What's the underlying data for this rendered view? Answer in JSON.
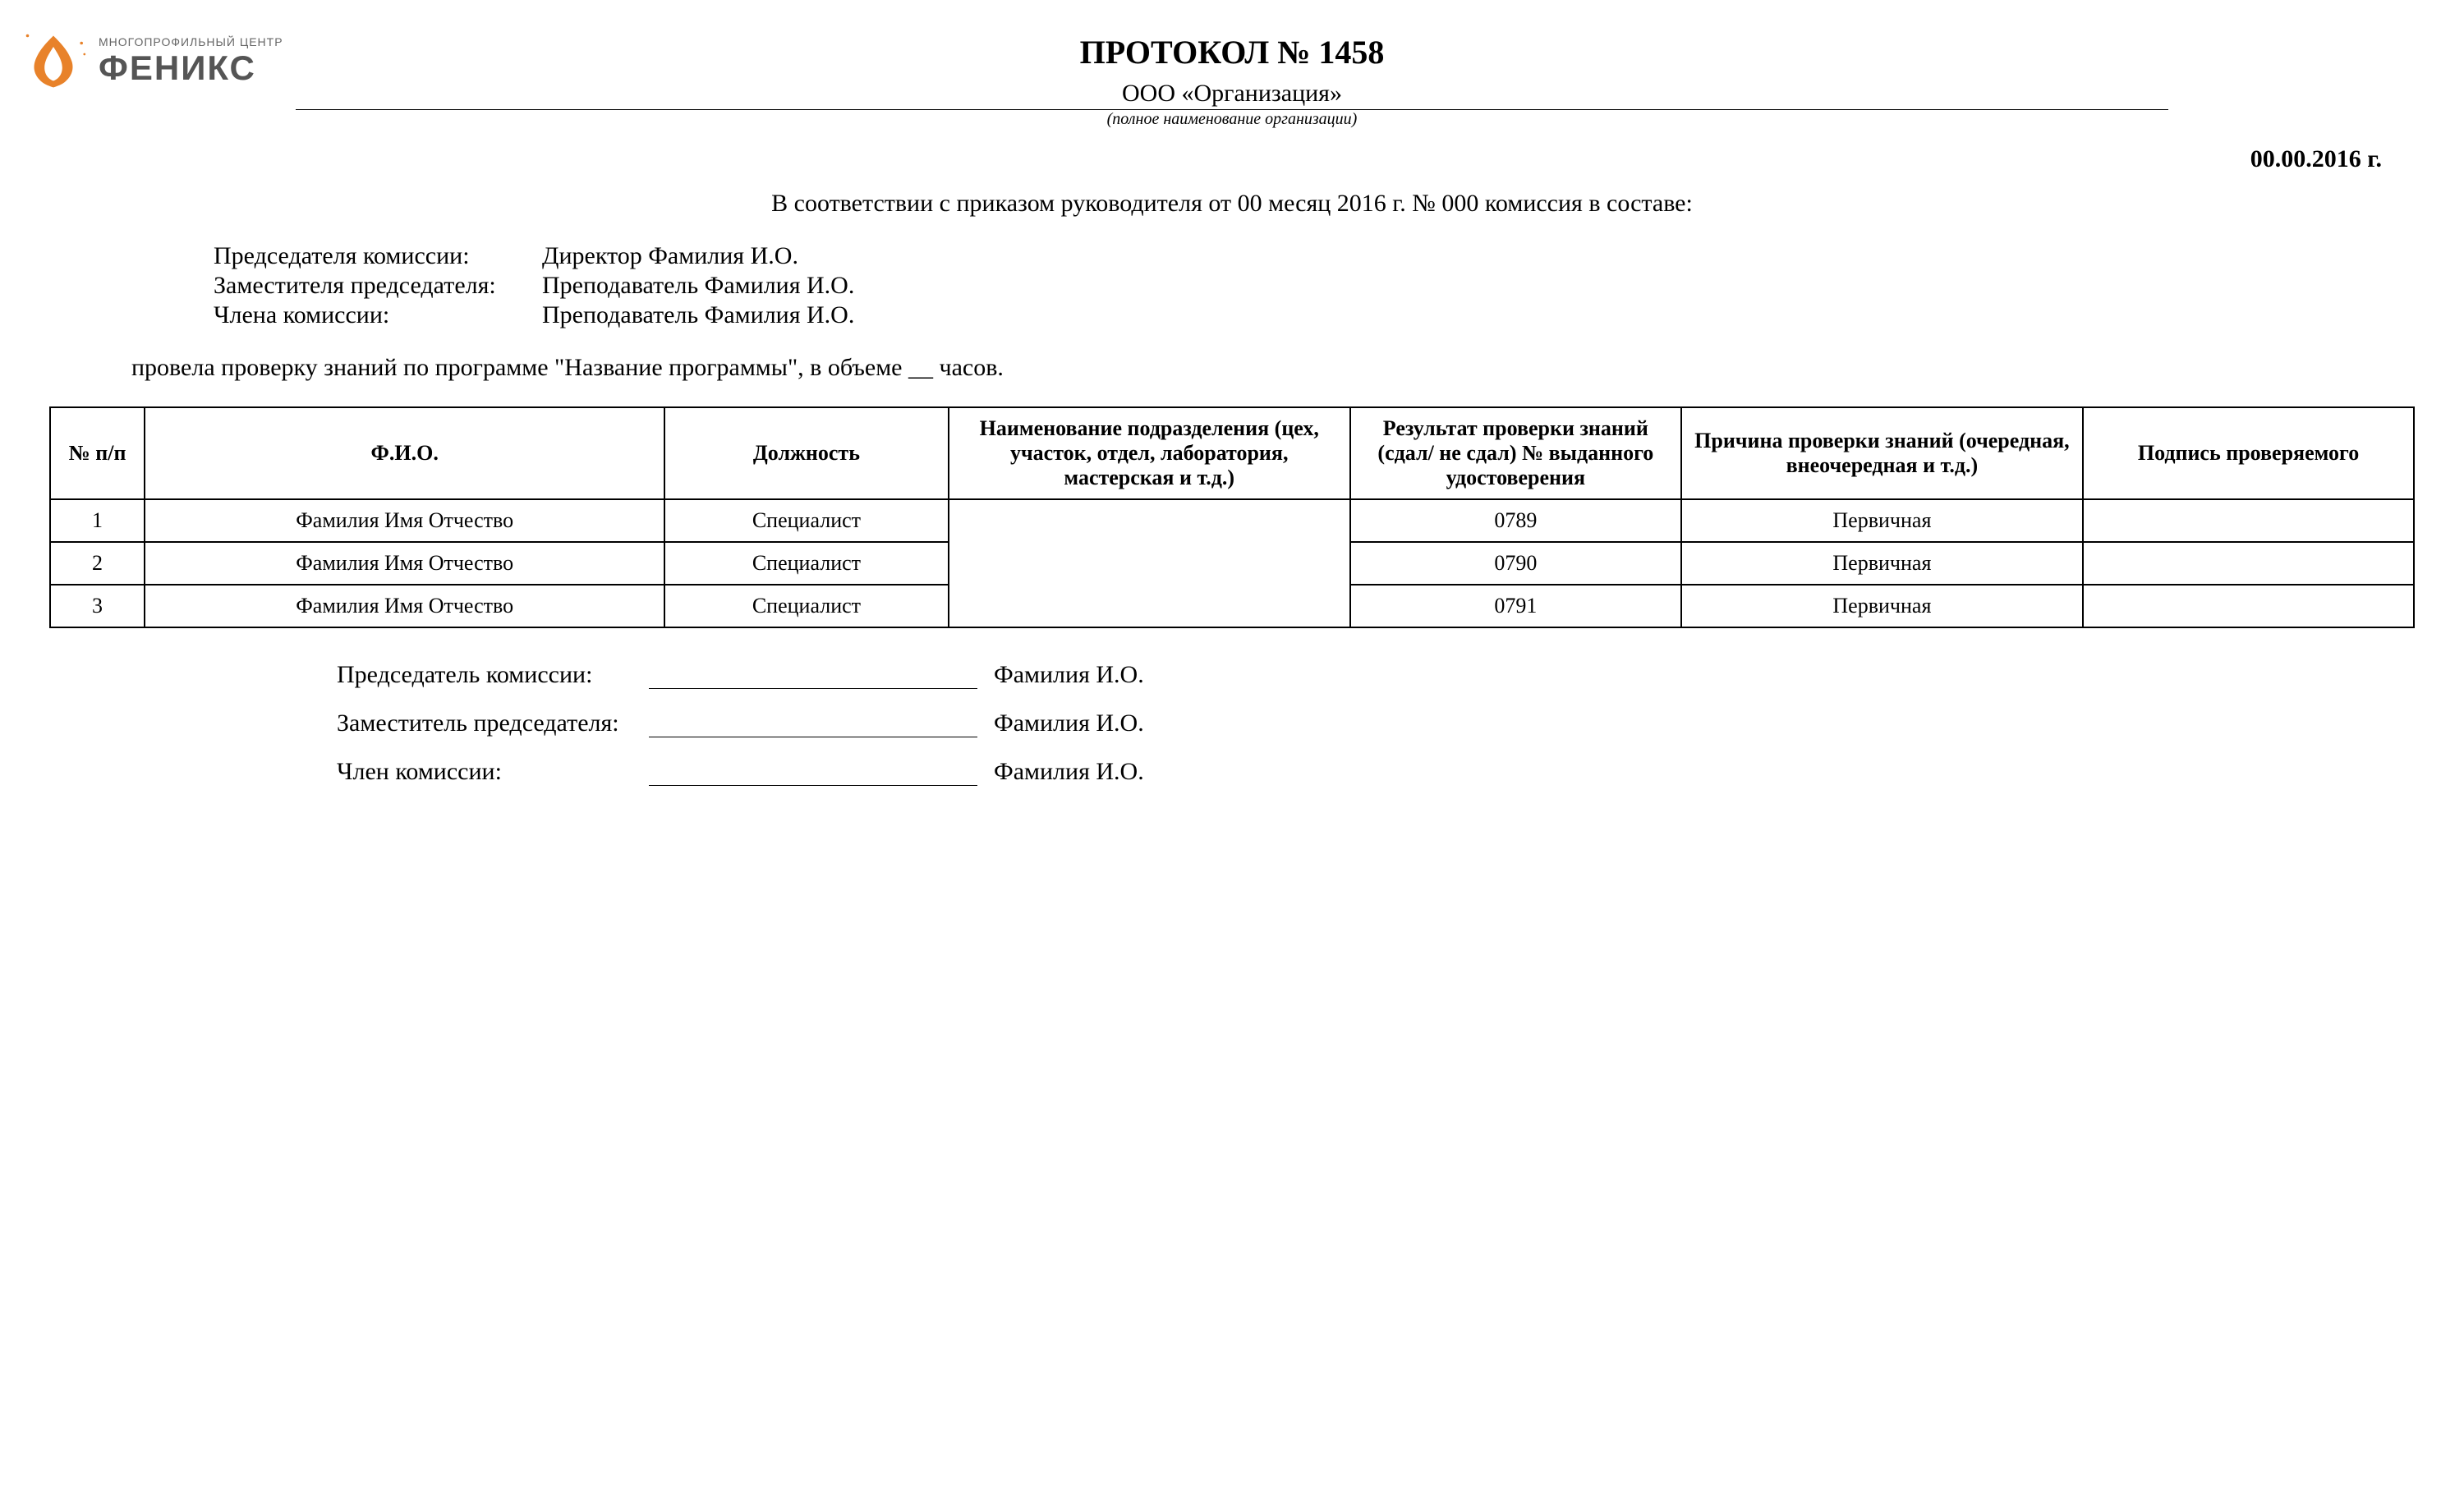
{
  "logo": {
    "subtitle": "МНОГОПРОФИЛЬНЫЙ ЦЕНТР",
    "title": "ФЕНИКС",
    "icon_color": "#e8822a"
  },
  "header": {
    "protocol_title": "ПРОТОКОЛ № 1458",
    "organization": "ООО «Организация»",
    "org_caption": "(полное наименование организации)"
  },
  "date": "00.00.2016 г.",
  "intro": "В соответствии с приказом руководителя от 00 месяц 2016 г. № 000  комиссия в составе:",
  "commission": {
    "chairman_label": "Председателя комиссии:",
    "chairman_value": "Директор  Фамилия И.О.",
    "deputy_label": "Заместителя председателя:",
    "deputy_value": "Преподаватель Фамилия И.О.",
    "member_label": "Члена комиссии:",
    "member_value": "Преподаватель Фамилия И.О."
  },
  "check_line": "провела  проверку  знаний  по  программе \"Название программы\", в  объеме  __  часов.",
  "table": {
    "headers": {
      "num": "№ п/п",
      "fio": "Ф.И.О.",
      "position": "Должность",
      "department": "Наименование подразделения (цех, участок, отдел, лаборатория, мастерская  и т.д.)",
      "result": "Результат проверки знаний (сдал/ не сдал) № выданного удостоверения",
      "reason": "Причина проверки знаний (очередная, внеочередная и т.д.)",
      "signature": "Подпись проверяемого"
    },
    "rows": [
      {
        "num": "1",
        "fio": "Фамилия Имя Отчество",
        "position": "Специалист",
        "department": "",
        "result": "0789",
        "reason": "Первичная",
        "signature": ""
      },
      {
        "num": "2",
        "fio": "Фамилия Имя Отчество",
        "position": "Специалист",
        "department": "",
        "result": "0790",
        "reason": "Первичная",
        "signature": ""
      },
      {
        "num": "3",
        "fio": "Фамилия Имя Отчество",
        "position": "Специалист",
        "department": "",
        "result": "0791",
        "reason": "Первичная",
        "signature": ""
      }
    ]
  },
  "signatures": {
    "chairman_label": "Председатель комиссии:",
    "chairman_name": "Фамилия И.О.",
    "deputy_label": "Заместитель председателя:",
    "deputy_name": "Фамилия И.О.",
    "member_label": "Член комиссии:",
    "member_name": "Фамилия И.О."
  },
  "styles": {
    "background": "#ffffff",
    "text_color": "#000000",
    "border_color": "#000000"
  }
}
